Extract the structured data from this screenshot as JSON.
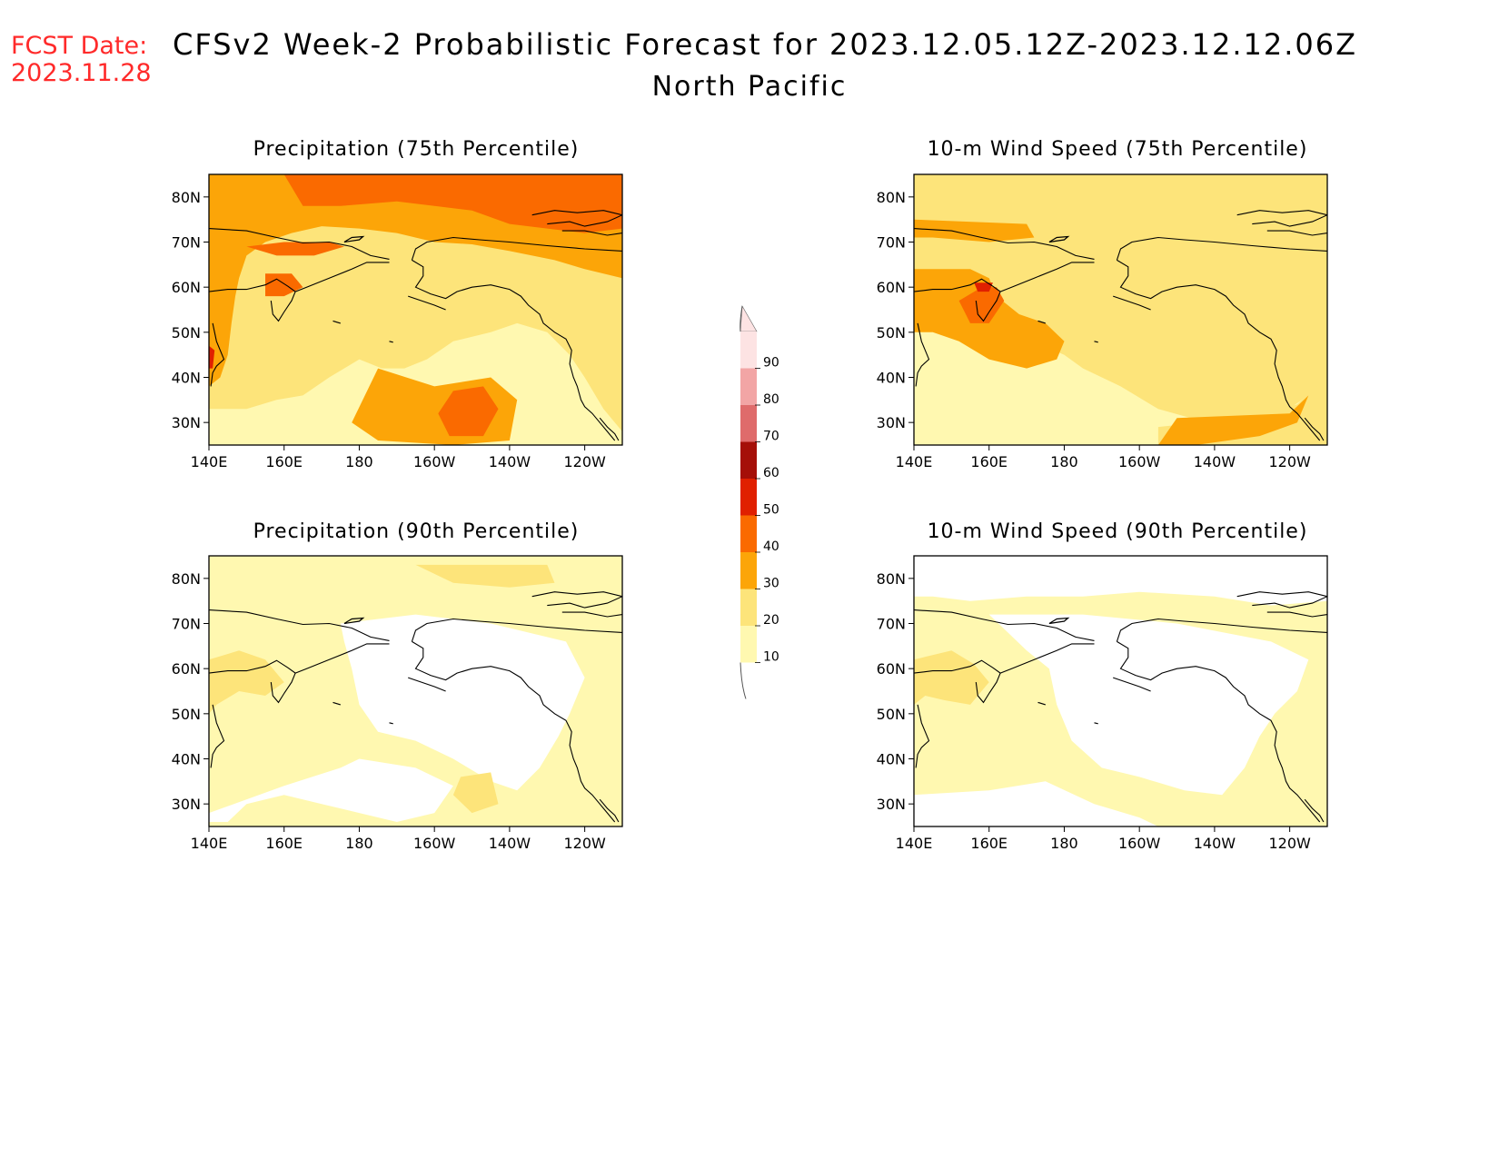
{
  "header": {
    "fcst_label": "FCST Date:",
    "fcst_date": "2023.11.28",
    "title": "CFSv2 Week-2 Probabilistic Forecast for 2023.12.05.12Z-2023.12.12.06Z",
    "subtitle": "North Pacific"
  },
  "axes": {
    "lat_ticks": [
      "80N",
      "70N",
      "60N",
      "50N",
      "40N",
      "30N"
    ],
    "lon_ticks": [
      "140E",
      "160E",
      "180",
      "160W",
      "140W",
      "120W"
    ]
  },
  "colorbar": {
    "levels": [
      "10",
      "20",
      "30",
      "40",
      "50",
      "60",
      "70",
      "80",
      "90"
    ],
    "colors": [
      "#fff8b0",
      "#fde47a",
      "#fca508",
      "#fa6a00",
      "#e02000",
      "#a50f08",
      "#df6b6b",
      "#f2a5a5",
      "#fde3e3"
    ]
  },
  "panels": [
    {
      "id": "precip-75",
      "title": "Precipitation (75th Percentile)"
    },
    {
      "id": "wind-75",
      "title": "10-m Wind Speed (75th Percentile)"
    },
    {
      "id": "precip-90",
      "title": "Precipitation (90th Percentile)"
    },
    {
      "id": "wind-90",
      "title": "10-m Wind Speed (90th Percentile)"
    }
  ]
}
